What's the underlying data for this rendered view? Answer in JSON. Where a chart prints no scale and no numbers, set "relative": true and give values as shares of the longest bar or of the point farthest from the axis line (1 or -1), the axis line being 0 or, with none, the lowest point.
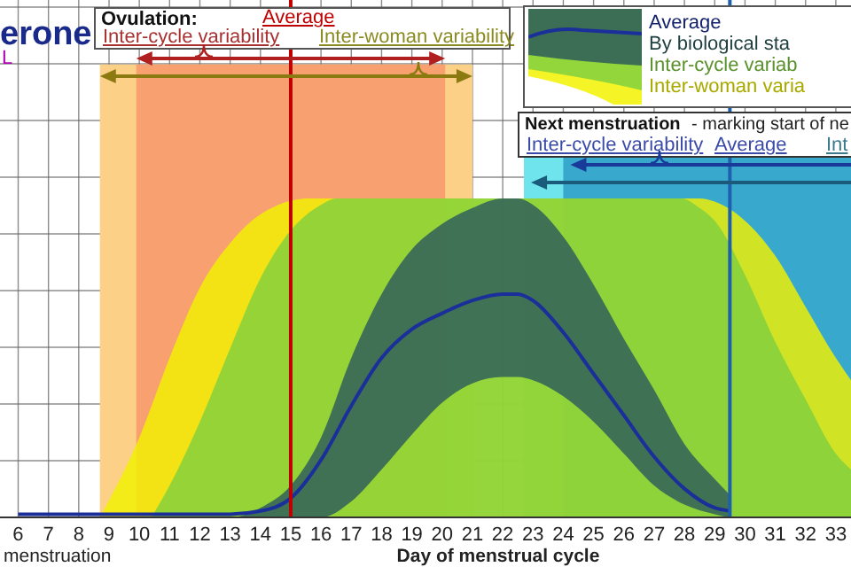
{
  "chart_data": {
    "type": "area",
    "title": "erone",
    "xlabel": "Day of menstrual cycle",
    "relative": true,
    "grid": true,
    "legend": "top right",
    "xlim": [
      5.4,
      33.5
    ],
    "xticks": [
      6,
      7,
      8,
      9,
      10,
      11,
      12,
      13,
      14,
      15,
      16,
      17,
      18,
      19,
      20,
      21,
      22,
      23,
      24,
      25,
      26,
      27,
      28,
      29,
      30,
      31,
      32,
      33
    ],
    "series": [
      {
        "type": "area",
        "name": "Inter-woman varia",
        "color": "#f2f200",
        "x": [
          8.7,
          10,
          11,
          12,
          13,
          14,
          15.6,
          28.5,
          29,
          30,
          31,
          32,
          33,
          33.5
        ],
        "values": [
          0,
          0.25,
          0.5,
          0.72,
          0.86,
          0.95,
          1,
          1,
          0.99,
          0.93,
          0.82,
          0.66,
          0.5,
          0.43
        ]
      },
      {
        "type": "area",
        "name": "Inter-cycle variab",
        "color": "#80d040",
        "x": [
          10.4,
          11,
          12,
          13,
          14,
          15,
          16,
          16.5,
          27.9,
          28.5,
          29,
          30,
          31,
          32,
          33,
          33.5
        ],
        "values": [
          0,
          0.1,
          0.3,
          0.53,
          0.75,
          0.9,
          0.98,
          1,
          1,
          0.97,
          0.93,
          0.76,
          0.55,
          0.37,
          0.2,
          0.15
        ]
      },
      {
        "type": "line",
        "name": "Average",
        "color": "#1a2f9a",
        "x": [
          6,
          7,
          8,
          9,
          10,
          11,
          12,
          13,
          14,
          15,
          16,
          17,
          18,
          19,
          20,
          21,
          22,
          22.5,
          23,
          24,
          25,
          26,
          27,
          28,
          29,
          29.5
        ],
        "values": [
          0.01,
          0.01,
          0.01,
          0.01,
          0.01,
          0.01,
          0.01,
          0.01,
          0.02,
          0.06,
          0.18,
          0.35,
          0.5,
          0.59,
          0.64,
          0.68,
          0.7,
          0.7,
          0.68,
          0.58,
          0.45,
          0.32,
          0.19,
          0.09,
          0.03,
          0.02
        ],
        "lower": [
          0,
          0,
          0,
          0,
          0,
          0,
          0,
          0,
          0,
          0,
          0,
          0.05,
          0.15,
          0.26,
          0.36,
          0.42,
          0.44,
          0.44,
          0.43,
          0.38,
          0.3,
          0.2,
          0.1,
          0.04,
          0.01,
          0
        ],
        "upper": [
          0,
          0,
          0,
          0,
          0,
          0,
          0,
          0,
          0.03,
          0.1,
          0.25,
          0.5,
          0.7,
          0.84,
          0.92,
          0.97,
          1,
          1,
          0.98,
          0.88,
          0.73,
          0.56,
          0.4,
          0.23,
          0.12,
          0.07
        ]
      }
    ],
    "bands": [
      {
        "axis": "x",
        "from": 8.7,
        "to": 21,
        "label": "Inter-woman variability",
        "color": "#fdd088"
      },
      {
        "axis": "x",
        "from": 9.9,
        "to": 20.1,
        "label": "Inter-cycle variability",
        "color": "#f8a070"
      },
      {
        "axis": "x",
        "from": 22.7,
        "to": 33.5,
        "label": "Int",
        "color": "#70e4ec"
      },
      {
        "axis": "x",
        "from": 24,
        "to": 33.5,
        "label": "Inter-cycle variability",
        "color": "#38a8cc"
      }
    ],
    "ref_lines": [
      {
        "axis": "x",
        "value": 15,
        "label": "Average",
        "color": "#c00000"
      },
      {
        "axis": "x",
        "value": 29.5,
        "label": "Average",
        "color": "#1f5fb0"
      }
    ],
    "annotations": [
      "Ovulation:",
      "Next menstruation",
      "- marking start of ne",
      "L",
      "menstruation",
      "By biological sta"
    ]
  }
}
